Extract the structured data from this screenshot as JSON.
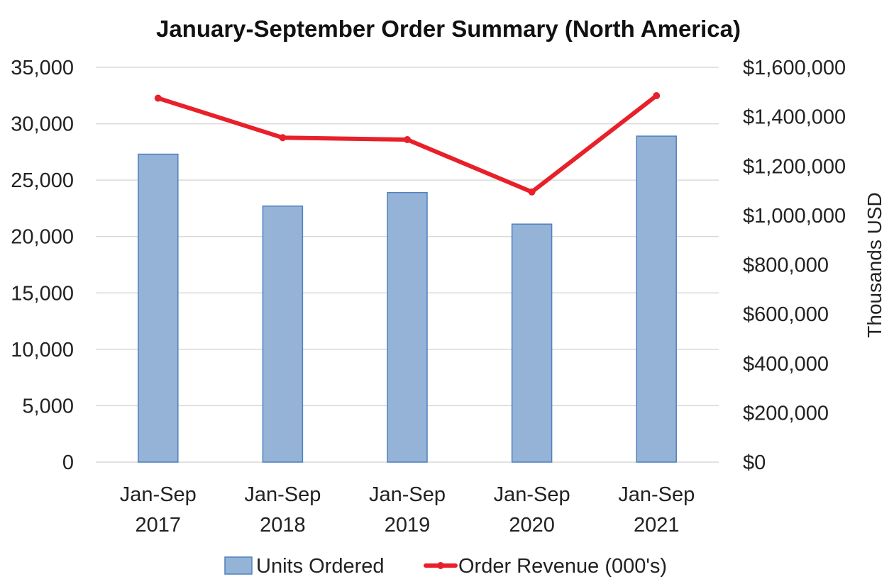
{
  "chart_data": {
    "type": "bar",
    "title": "January-September Order Summary (North America)",
    "categories": [
      [
        "Jan-Sep",
        "2017"
      ],
      [
        "Jan-Sep",
        "2018"
      ],
      [
        "Jan-Sep",
        "2019"
      ],
      [
        "Jan-Sep",
        "2020"
      ],
      [
        "Jan-Sep",
        "2021"
      ]
    ],
    "series": [
      {
        "name": "Units Ordered",
        "type": "bar",
        "axis": "left",
        "color": "#95b3d7",
        "values": [
          27300,
          22700,
          23900,
          21100,
          28900
        ]
      },
      {
        "name": "Order Revenue (000's)",
        "type": "line",
        "axis": "right",
        "color": "#e8202a",
        "values": [
          1475000,
          1315000,
          1307000,
          1095000,
          1485000
        ]
      }
    ],
    "y_left": {
      "min": 0,
      "max": 35000,
      "step": 5000,
      "tick_labels": [
        "0",
        "5,000",
        "10,000",
        "15,000",
        "20,000",
        "25,000",
        "30,000",
        "35,000"
      ]
    },
    "y_right": {
      "label": "Thousands USD",
      "min": 0,
      "max": 1600000,
      "step": 200000,
      "tick_labels": [
        "$0",
        "$200,000",
        "$400,000",
        "$600,000",
        "$800,000",
        "$1,000,000",
        "$1,200,000",
        "$1,400,000",
        "$1,600,000"
      ]
    },
    "grid": true,
    "legend_position": "bottom"
  }
}
